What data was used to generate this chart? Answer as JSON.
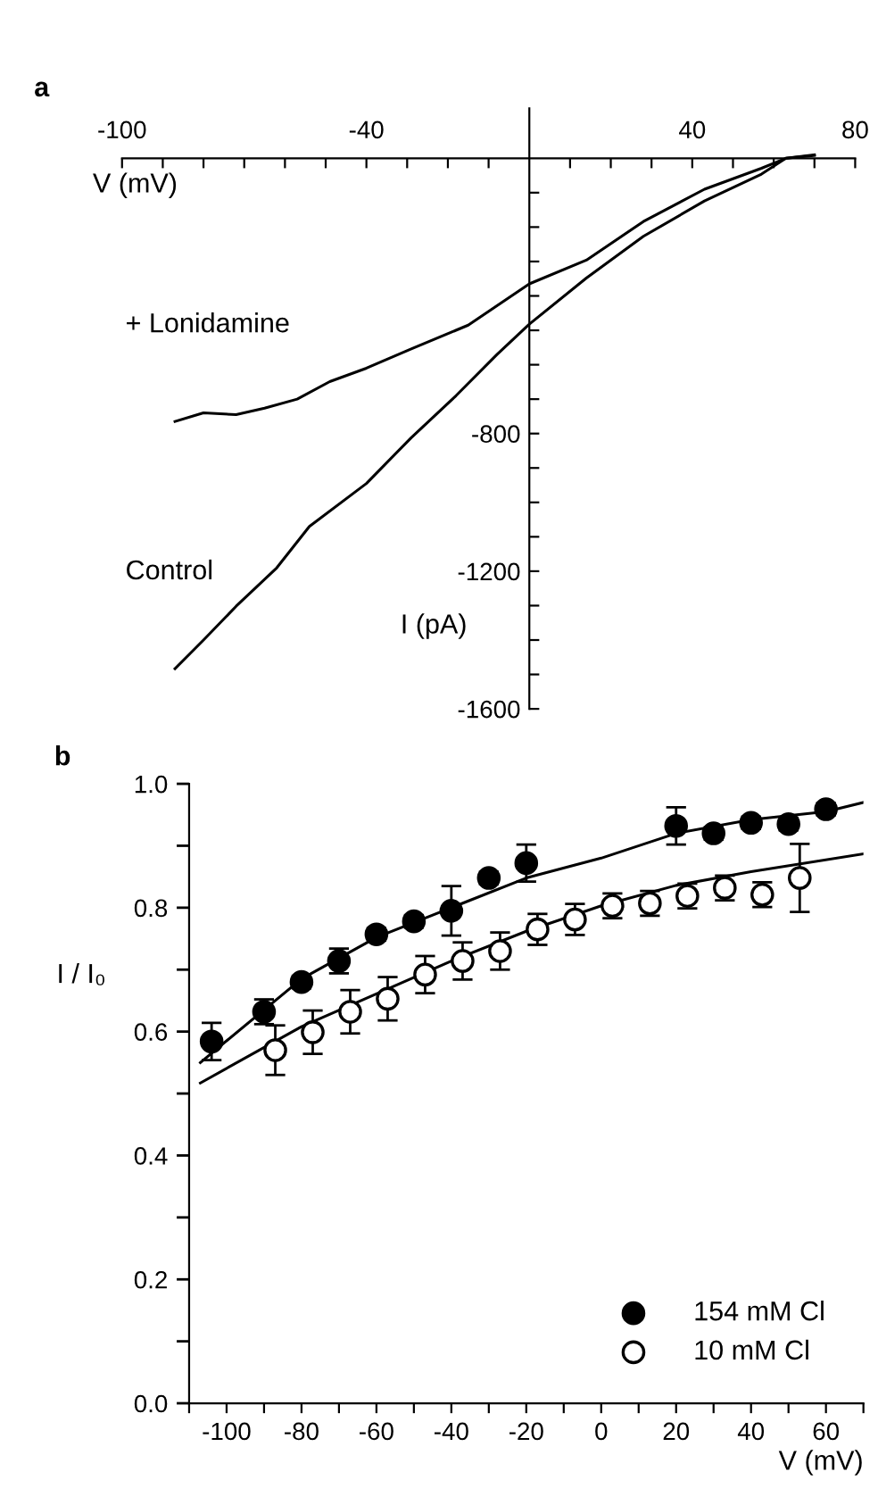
{
  "chart_data": [
    {
      "type": "line",
      "xlabel": "V (mV)",
      "ylabel": "I (pA)",
      "annotations": [
        "a"
      ],
      "xlim": [
        -100,
        80
      ],
      "ylim": [
        -1600,
        145
      ],
      "xticks": [
        -100,
        {
          "value": -90,
          "label": null
        },
        {
          "value": -80,
          "label": null
        },
        {
          "value": -70,
          "label": null
        },
        {
          "value": -60,
          "label": null
        },
        {
          "value": -50,
          "label": null
        },
        -40,
        {
          "value": -30,
          "label": null
        },
        {
          "value": -20,
          "label": null
        },
        {
          "value": -10,
          "label": null
        },
        {
          "value": 10,
          "label": null
        },
        {
          "value": 20,
          "label": null
        },
        {
          "value": 30,
          "label": null
        },
        40,
        {
          "value": 50,
          "label": null
        },
        {
          "value": 60,
          "label": null
        },
        {
          "value": 70,
          "label": null
        },
        80
      ],
      "yticks": [
        {
          "value": -100,
          "label": null
        },
        {
          "value": -200,
          "label": null
        },
        {
          "value": -300,
          "label": null
        },
        {
          "value": -400,
          "label": null
        },
        {
          "value": -500,
          "label": null
        },
        {
          "value": -600,
          "label": null
        },
        {
          "value": -700,
          "label": null
        },
        -800,
        {
          "value": -900,
          "label": null
        },
        {
          "value": -1000,
          "label": null
        },
        {
          "value": -1100,
          "label": null
        },
        -1200,
        {
          "value": -1300,
          "label": null
        },
        {
          "value": -1400,
          "label": null
        },
        {
          "value": -1500,
          "label": null
        },
        -1600
      ],
      "legend": false,
      "series": [
        {
          "name": "+ Lonidamine",
          "color": "#000000",
          "x": [
            -87,
            -80,
            -72,
            -65,
            -57,
            -49,
            -40,
            -29,
            -15,
            0,
            14,
            28,
            43,
            57,
            63,
            70
          ],
          "values": [
            -765,
            -740,
            -745,
            -726,
            -700,
            -649,
            -610,
            -554,
            -485,
            -365,
            -296,
            -184,
            -90,
            -29,
            0,
            10
          ]
        },
        {
          "name": "Control",
          "color": "#000000",
          "x": [
            -87,
            -80,
            -72,
            -62,
            -54,
            -40,
            -29,
            -18,
            -8,
            0,
            14,
            28,
            43,
            57,
            63,
            70
          ],
          "values": [
            -1483,
            -1400,
            -1302,
            -1190,
            -1070,
            -945,
            -812,
            -690,
            -571,
            -482,
            -348,
            -227,
            -124,
            -46,
            0,
            8
          ]
        }
      ]
    },
    {
      "type": "scatter",
      "xlabel": "V (mV)",
      "ylabel": "I / I₀",
      "annotations": [
        "b"
      ],
      "xlim": [
        -110,
        70
      ],
      "ylim": [
        0,
        1
      ],
      "xticks": [
        {
          "value": -110,
          "label": null
        },
        -100,
        {
          "value": -90,
          "label": null
        },
        -80,
        {
          "value": -70,
          "label": null
        },
        -60,
        {
          "value": -50,
          "label": null
        },
        -40,
        {
          "value": -30,
          "label": null
        },
        -20,
        {
          "value": -10,
          "label": null
        },
        0,
        {
          "value": 10,
          "label": null
        },
        20,
        {
          "value": 30,
          "label": null
        },
        40,
        {
          "value": 50,
          "label": null
        },
        60,
        {
          "value": 70,
          "label": null
        }
      ],
      "yticks": [
        {
          "value": 0.0,
          "label": "0.0"
        },
        {
          "value": 0.1,
          "label": null
        },
        0.2,
        {
          "value": 0.3,
          "label": null
        },
        0.4,
        {
          "value": 0.5,
          "label": null
        },
        0.6,
        {
          "value": 0.7,
          "label": null
        },
        0.8,
        {
          "value": 0.9,
          "label": null
        },
        {
          "value": 1.0,
          "label": "1.0"
        }
      ],
      "legend": "bottom right",
      "series": [
        {
          "name": "154 mM Cl",
          "color": "#000000",
          "marker": "circle",
          "x": [
            -104,
            -90,
            -80,
            -70,
            -60,
            -50,
            -40,
            -30,
            -20,
            20,
            30,
            40,
            50,
            60
          ],
          "values": [
            0.584,
            0.632,
            0.68,
            0.714,
            0.757,
            0.778,
            0.795,
            0.848,
            0.872,
            0.932,
            0.92,
            0.937,
            0.935,
            0.959
          ],
          "errors": [
            0.03,
            0.02,
            0.01,
            0.02,
            0.01,
            0.01,
            0.04,
            0.01,
            0.03,
            0.03,
            0.01,
            0.01,
            0.01,
            0.01
          ]
        },
        {
          "name": "10 mM Cl",
          "color": "#ffffff",
          "marker": "circle",
          "x": [
            -87,
            -77,
            -67,
            -57,
            -47,
            -37,
            -27,
            -17,
            -7,
            3,
            13,
            23,
            33,
            43,
            53
          ],
          "values": [
            0.57,
            0.599,
            0.632,
            0.653,
            0.692,
            0.714,
            0.73,
            0.765,
            0.781,
            0.803,
            0.807,
            0.819,
            0.832,
            0.821,
            0.848
          ],
          "errors": [
            0.04,
            0.035,
            0.035,
            0.035,
            0.03,
            0.03,
            0.03,
            0.025,
            0.025,
            0.02,
            0.02,
            0.02,
            0.02,
            0.02,
            0.055
          ]
        },
        {
          "type": "line",
          "color": "#000000",
          "x": [
            -107,
            -80,
            -60,
            -40,
            -20,
            0,
            20,
            40,
            60,
            70
          ],
          "values": [
            0.55,
            0.685,
            0.752,
            0.8,
            0.848,
            0.88,
            0.92,
            0.942,
            0.955,
            0.97
          ]
        },
        {
          "type": "line",
          "color": "#000000",
          "x": [
            -107,
            -80,
            -60,
            -40,
            -20,
            0,
            20,
            40,
            70
          ],
          "values": [
            0.517,
            0.608,
            0.661,
            0.714,
            0.762,
            0.803,
            0.836,
            0.858,
            0.887
          ]
        }
      ]
    }
  ]
}
